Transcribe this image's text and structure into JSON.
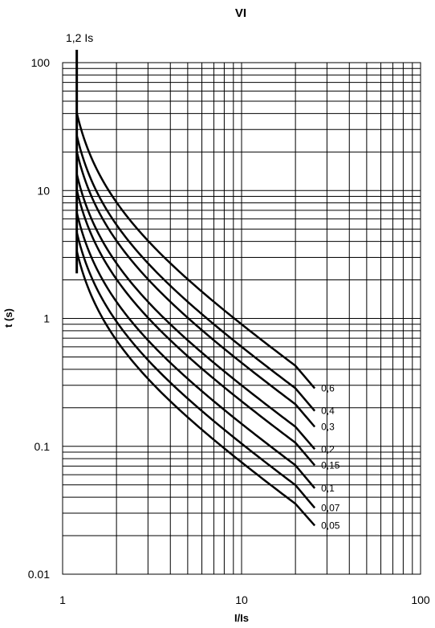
{
  "chart_data": {
    "type": "line",
    "title": "VI",
    "xlabel": "I/Is",
    "ylabel": "t (s)",
    "xscale": "log",
    "yscale": "log",
    "xlim": [
      1,
      100
    ],
    "ylim": [
      0.01,
      100
    ],
    "x_ticks": [
      "1",
      "10",
      "100"
    ],
    "y_ticks": [
      "100",
      "10",
      "1",
      "0.1",
      "0.01"
    ],
    "grid": true,
    "annotation": "1,2 Is",
    "pickup_multiple": 1.2,
    "x": [
      1.2,
      1.5,
      2,
      3,
      5,
      7,
      10,
      15,
      20
    ],
    "series": [
      {
        "name": "0,6",
        "values": [
          27.0,
          13.5,
          6.75,
          3.375,
          1.688,
          1.125,
          0.75,
          0.482,
          0.284
        ]
      },
      {
        "name": "0,4",
        "values": [
          18.0,
          9.0,
          4.5,
          2.25,
          1.125,
          0.75,
          0.5,
          0.321,
          0.189
        ]
      },
      {
        "name": "0,3",
        "values": [
          13.5,
          6.75,
          3.375,
          1.688,
          0.844,
          0.563,
          0.375,
          0.241,
          0.142
        ]
      },
      {
        "name": "0,2",
        "values": [
          9.0,
          4.5,
          2.25,
          1.125,
          0.563,
          0.375,
          0.25,
          0.161,
          0.095
        ]
      },
      {
        "name": "0,15",
        "values": [
          6.75,
          3.375,
          1.688,
          0.844,
          0.422,
          0.281,
          0.188,
          0.121,
          0.071
        ]
      },
      {
        "name": "0,1",
        "values": [
          4.5,
          2.25,
          1.125,
          0.563,
          0.281,
          0.188,
          0.125,
          0.08,
          0.047
        ]
      },
      {
        "name": "0,07",
        "values": [
          3.15,
          1.575,
          0.788,
          0.394,
          0.197,
          0.131,
          0.088,
          0.056,
          0.033
        ]
      },
      {
        "name": "0,05",
        "values": [
          2.25,
          1.125,
          0.563,
          0.281,
          0.141,
          0.094,
          0.063,
          0.04,
          0.024
        ]
      }
    ]
  }
}
